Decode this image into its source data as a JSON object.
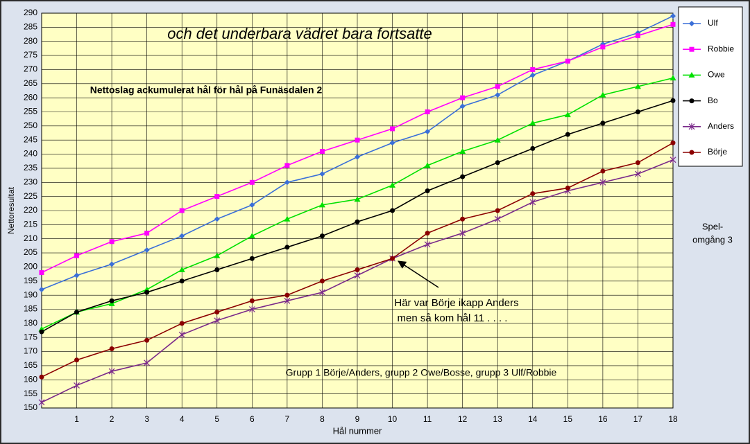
{
  "chart_data": {
    "type": "line",
    "title": "och det underbara vädret bara fortsatte",
    "subtitle": "Nettoslag ackumulerat hål för hål på Funäsdalen 2",
    "x_label": "Hål nummer",
    "y_label": "Nettoresultat",
    "annotation": [
      "Här var Börje ikapp Anders",
      "men så kom hål 11 . . . ."
    ],
    "footnote": "Grupp 1 Börje/Anders, grupp 2 Owe/Bosse, grupp 3 Ulf/Robbie",
    "side_note": [
      "Spel-",
      "omgång 3"
    ],
    "x": [
      0,
      1,
      2,
      3,
      4,
      5,
      6,
      7,
      8,
      9,
      10,
      11,
      12,
      13,
      14,
      15,
      16,
      17,
      18
    ],
    "xlim": [
      0,
      18
    ],
    "xticks": [
      1,
      2,
      3,
      4,
      5,
      6,
      7,
      8,
      9,
      10,
      11,
      12,
      13,
      14,
      15,
      16,
      17,
      18
    ],
    "ylim": [
      150,
      290
    ],
    "yticks": [
      150,
      155,
      160,
      165,
      170,
      175,
      180,
      185,
      190,
      195,
      200,
      205,
      210,
      215,
      220,
      225,
      230,
      235,
      240,
      245,
      250,
      255,
      260,
      265,
      270,
      275,
      280,
      285,
      290
    ],
    "grid": true,
    "legend": "right",
    "series": [
      {
        "name": "Ulf",
        "color": "#3a6fd8",
        "marker": "diamond",
        "values": [
          192,
          197,
          201,
          206,
          211,
          217,
          222,
          230,
          233,
          239,
          244,
          248,
          257,
          261,
          268,
          273,
          279,
          283,
          289
        ]
      },
      {
        "name": "Robbie",
        "color": "#ff00ff",
        "marker": "square",
        "values": [
          198,
          204,
          209,
          212,
          220,
          225,
          230,
          236,
          241,
          245,
          249,
          255,
          260,
          264,
          270,
          273,
          278,
          282,
          286
        ]
      },
      {
        "name": "Owe",
        "color": "#00e000",
        "marker": "triangle",
        "values": [
          178,
          184,
          187,
          192,
          199,
          204,
          211,
          217,
          222,
          224,
          229,
          236,
          241,
          245,
          251,
          254,
          261,
          264,
          267
        ]
      },
      {
        "name": "Bo",
        "color": "#000000",
        "marker": "circle",
        "values": [
          177,
          184,
          188,
          191,
          195,
          199,
          203,
          207,
          211,
          216,
          220,
          227,
          232,
          237,
          242,
          247,
          251,
          255,
          259
        ]
      },
      {
        "name": "Anders",
        "color": "#7a2a8a",
        "marker": "star",
        "values": [
          152,
          158,
          163,
          166,
          176,
          181,
          185,
          188,
          191,
          197,
          203,
          208,
          212,
          217,
          223,
          227,
          230,
          233,
          238
        ]
      },
      {
        "name": "Börje",
        "color": "#8b0000",
        "marker": "circle",
        "values": [
          161,
          167,
          171,
          174,
          180,
          184,
          188,
          190,
          195,
          199,
          203,
          212,
          217,
          220,
          226,
          228,
          234,
          237,
          244
        ]
      }
    ]
  }
}
